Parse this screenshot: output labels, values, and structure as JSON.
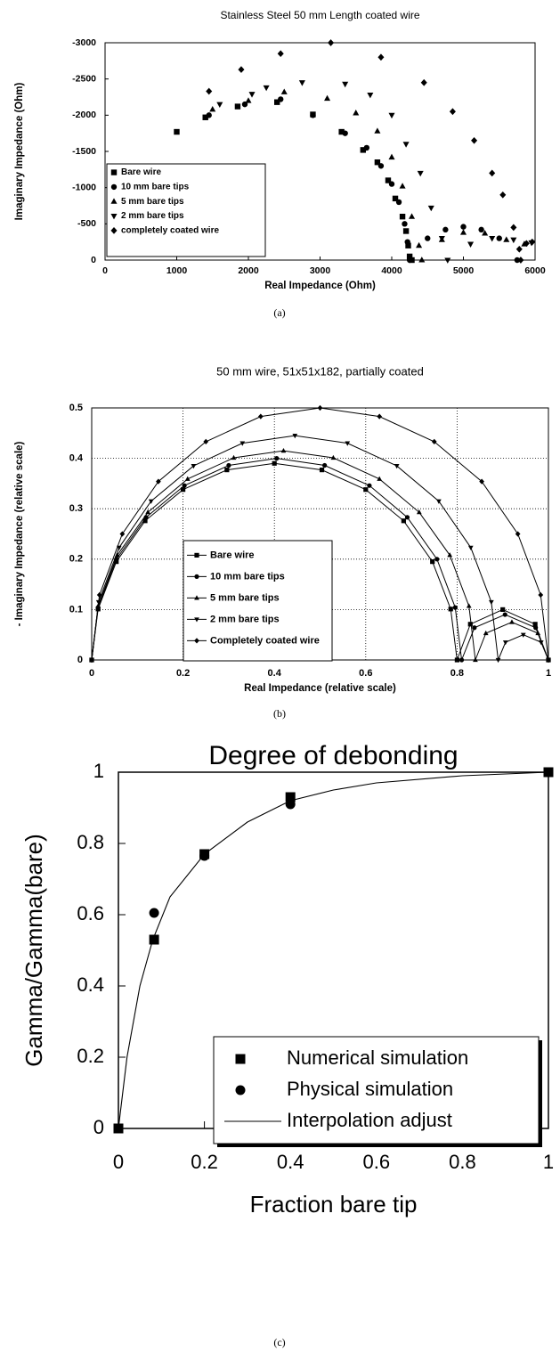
{
  "chart_data": [
    {
      "type": "scatter",
      "title": "Stainless Steel 50 mm Length coated wire",
      "caption": "(a)",
      "x_label": "Real Impedance (Ohm)",
      "y_label": "Imaginary Impedance (Ohm)",
      "xlim": [
        0,
        6000
      ],
      "xticks": [
        0,
        1000,
        2000,
        3000,
        4000,
        5000,
        6000
      ],
      "ylim": [
        0,
        -3000
      ],
      "yticks": [
        0,
        -500,
        -1000,
        -1500,
        -2000,
        -2500,
        -3000
      ],
      "grid": false,
      "legend": "lower left",
      "series": [
        {
          "name": "Bare wire",
          "color": "#000000",
          "marker": "square",
          "mode": "markers",
          "x": [
            1000,
            1400,
            1850,
            2400,
            2900,
            3300,
            3600,
            3800,
            3950,
            4050,
            4150,
            4200,
            4230,
            4250,
            4280
          ],
          "values": [
            -1770,
            -1970,
            -2120,
            -2180,
            -2010,
            -1770,
            -1520,
            -1350,
            -1100,
            -850,
            -600,
            -400,
            -200,
            -50,
            0
          ]
        },
        {
          "name": "10 mm bare tips",
          "color": "#000000",
          "marker": "circle",
          "mode": "markers",
          "x": [
            1450,
            1950,
            2450,
            2900,
            3350,
            3650,
            3850,
            4000,
            4100,
            4180,
            4220,
            4250,
            4500,
            4750,
            5000,
            5250,
            5500,
            5750
          ],
          "values": [
            -2000,
            -2150,
            -2220,
            -2000,
            -1750,
            -1550,
            -1300,
            -1050,
            -800,
            -500,
            -250,
            0,
            -300,
            -420,
            -460,
            -420,
            -300,
            0
          ]
        },
        {
          "name": "5 mm bare tips",
          "color": "#000000",
          "marker": "up",
          "mode": "markers",
          "x": [
            1500,
            2000,
            2500,
            3100,
            3500,
            3800,
            4000,
            4150,
            4280,
            4380,
            4420,
            4700,
            5000,
            5300,
            5600,
            5850
          ],
          "values": [
            -2080,
            -2200,
            -2320,
            -2230,
            -2030,
            -1780,
            -1420,
            -1020,
            -600,
            -200,
            0,
            -280,
            -380,
            -370,
            -280,
            -220
          ]
        },
        {
          "name": "2 mm bare tips",
          "color": "#000000",
          "marker": "down",
          "mode": "markers",
          "x": [
            1600,
            2050,
            2250,
            2750,
            3350,
            3700,
            4000,
            4200,
            4400,
            4550,
            4700,
            4780,
            5100,
            5400,
            5700,
            5950
          ],
          "values": [
            -2150,
            -2290,
            -2380,
            -2450,
            -2430,
            -2280,
            -2000,
            -1600,
            -1200,
            -720,
            -300,
            0,
            -220,
            -300,
            -280,
            -240
          ]
        },
        {
          "name": "completely coated wire",
          "color": "#000000",
          "marker": "diamond",
          "mode": "markers",
          "x": [
            1450,
            1900,
            2450,
            3150,
            3850,
            4450,
            4850,
            5150,
            5400,
            5550,
            5700,
            5780,
            5800,
            5880,
            5960
          ],
          "values": [
            -2330,
            -2630,
            -2850,
            -3000,
            -2800,
            -2450,
            -2050,
            -1650,
            -1200,
            -900,
            -450,
            -150,
            0,
            -230,
            -250
          ]
        }
      ]
    },
    {
      "type": "line",
      "title": "50 mm wire, 51x51x182, partially coated",
      "caption": "(b)",
      "x_label": "Real Impedance (relative scale)",
      "y_label": "- Imaginary Impedance (relative scale)",
      "xlim": [
        0,
        1
      ],
      "xticks": [
        0,
        0.2,
        0.4,
        0.6,
        0.8,
        1
      ],
      "ylim": [
        0,
        0.5
      ],
      "yticks": [
        0,
        0.1,
        0.2,
        0.3,
        0.4,
        0.5
      ],
      "grid": true,
      "legend": "lower center",
      "series": [
        {
          "name": "Bare wire",
          "color": "#000000",
          "marker": "square",
          "mode": "lines+markers",
          "x": [
            0,
            0.014,
            0.054,
            0.117,
            0.2,
            0.296,
            0.4,
            0.504,
            0.6,
            0.683,
            0.746,
            0.786,
            0.8,
            0.829,
            0.9,
            0.971,
            1
          ],
          "values": [
            0,
            0.101,
            0.195,
            0.276,
            0.338,
            0.377,
            0.39,
            0.377,
            0.338,
            0.276,
            0.195,
            0.101,
            0,
            0.071,
            0.1,
            0.071,
            0
          ]
        },
        {
          "name": "10 mm bare tips",
          "color": "#000000",
          "marker": "circle",
          "mode": "lines+markers",
          "x": [
            0,
            0.014,
            0.054,
            0.119,
            0.203,
            0.3,
            0.405,
            0.51,
            0.608,
            0.691,
            0.756,
            0.796,
            0.81,
            0.838,
            0.905,
            0.972,
            1
          ],
          "values": [
            0,
            0.104,
            0.2,
            0.283,
            0.346,
            0.386,
            0.4,
            0.386,
            0.346,
            0.283,
            0.2,
            0.104,
            0,
            0.064,
            0.09,
            0.064,
            0
          ]
        },
        {
          "name": "5 mm bare tips",
          "color": "#000000",
          "marker": "up",
          "mode": "lines+markers",
          "x": [
            0,
            0.014,
            0.056,
            0.123,
            0.21,
            0.311,
            0.42,
            0.529,
            0.63,
            0.717,
            0.784,
            0.826,
            0.84,
            0.863,
            0.92,
            0.977,
            1
          ],
          "values": [
            0,
            0.107,
            0.208,
            0.293,
            0.359,
            0.401,
            0.415,
            0.401,
            0.359,
            0.293,
            0.208,
            0.107,
            0,
            0.053,
            0.075,
            0.053,
            0
          ]
        },
        {
          "name": "2 mm bare tips",
          "color": "#000000",
          "marker": "down",
          "mode": "lines+markers",
          "x": [
            0,
            0.015,
            0.06,
            0.13,
            0.223,
            0.33,
            0.445,
            0.56,
            0.668,
            0.76,
            0.83,
            0.875,
            0.89,
            0.906,
            0.945,
            0.984,
            1
          ],
          "values": [
            0,
            0.115,
            0.223,
            0.315,
            0.385,
            0.43,
            0.445,
            0.43,
            0.385,
            0.315,
            0.223,
            0.115,
            0,
            0.035,
            0.05,
            0.035,
            0
          ]
        },
        {
          "name": "Completely coated wire",
          "color": "#000000",
          "marker": "diamond",
          "mode": "lines+markers",
          "x": [
            0,
            0.017,
            0.067,
            0.146,
            0.25,
            0.37,
            0.5,
            0.63,
            0.75,
            0.854,
            0.933,
            0.983,
            1
          ],
          "values": [
            0,
            0.129,
            0.25,
            0.354,
            0.433,
            0.483,
            0.5,
            0.483,
            0.433,
            0.354,
            0.25,
            0.129,
            0
          ]
        }
      ]
    },
    {
      "type": "scatter",
      "title": "Degree of debonding",
      "caption": "(c)",
      "x_label": "Fraction bare tip",
      "y_label": "Gamma/Gamma(bare)",
      "xlim": [
        0,
        1
      ],
      "xticks": [
        0,
        0.2,
        0.4,
        0.6,
        0.8,
        1
      ],
      "ylim": [
        0,
        1
      ],
      "yticks": [
        0,
        0.2,
        0.4,
        0.6,
        0.8,
        1
      ],
      "grid": false,
      "legend": "lower right",
      "series": [
        {
          "name": "Numerical simulation",
          "color": "#000000",
          "marker": "square",
          "mode": "markers",
          "x": [
            0,
            0.083,
            0.2,
            0.4,
            1
          ],
          "values": [
            0,
            0.53,
            0.77,
            0.93,
            1
          ]
        },
        {
          "name": "Physical simulation",
          "color": "#000000",
          "marker": "circle",
          "mode": "markers",
          "x": [
            0.083,
            0.2,
            0.4
          ],
          "values": [
            0.605,
            0.765,
            0.91
          ]
        },
        {
          "name": "Interpolation adjust",
          "color": "#000000",
          "marker": null,
          "mode": "lines",
          "x": [
            0,
            0.02,
            0.05,
            0.08,
            0.12,
            0.2,
            0.3,
            0.4,
            0.5,
            0.6,
            0.8,
            1
          ],
          "values": [
            0,
            0.2,
            0.4,
            0.53,
            0.65,
            0.77,
            0.86,
            0.92,
            0.95,
            0.97,
            0.99,
            1
          ]
        }
      ]
    }
  ]
}
